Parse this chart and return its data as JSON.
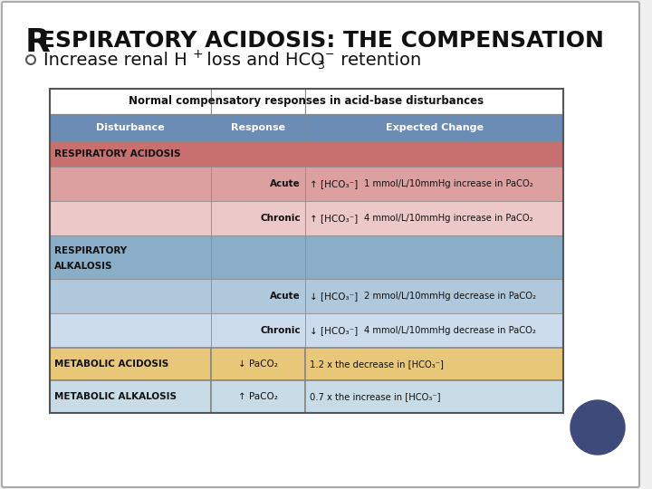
{
  "title_R": "R",
  "title_rest": "ESPIRATORY ACIDOSIS: THE COMPENSATION",
  "bullet_prefix": "Increase renal H",
  "bullet_sup": "+",
  "bullet_mid": " loss and HCO",
  "bullet_sub": "3",
  "bullet_sup2": "−",
  "bullet_suffix": " retention",
  "table_title": "Normal compensatory responses in acid-base disturbances",
  "col_headers": [
    "Disturbance",
    "Response",
    "Expected Change"
  ],
  "header_bg": "#6b8db5",
  "header_text_color": "#ffffff",
  "row_colors": {
    "resp_acidosis_header": "#c87070",
    "resp_acidosis_acute": "#dda0a0",
    "resp_acidosis_chronic": "#ecc8c8",
    "resp_alkalosis_header": "#8aaec8",
    "resp_alkalosis_acute": "#b0c8dc",
    "resp_alkalosis_chronic": "#ccdcec",
    "metabolic_acidosis": "#e8c878",
    "metabolic_alkalosis": "#c8dce8"
  },
  "slide_bg": "#f0f0f0",
  "inner_bg": "#ffffff",
  "border_color": "#aaaaaa",
  "circle_color": "#3d4a7a",
  "title_color": "#111111",
  "bullet_color": "#111111",
  "table_text_color": "#111111"
}
